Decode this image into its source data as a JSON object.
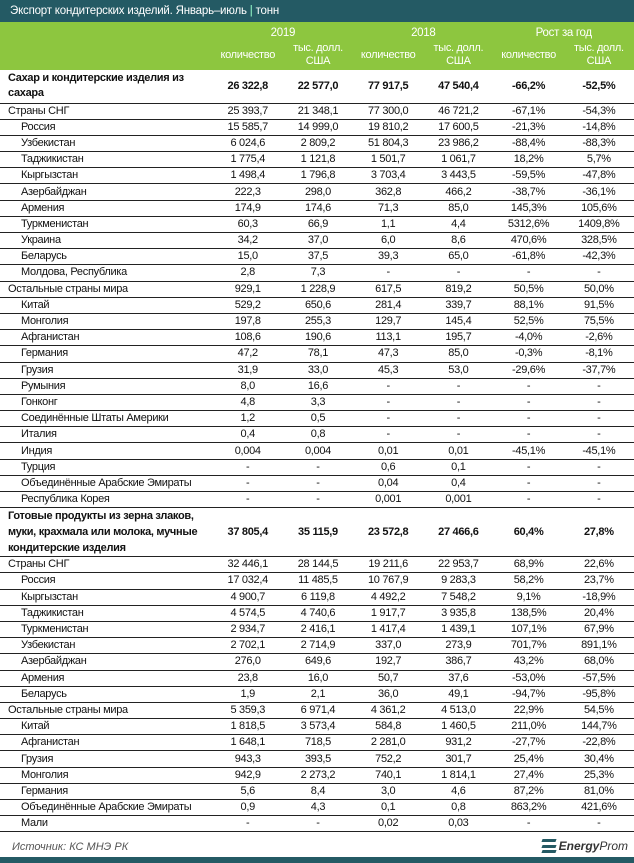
{
  "title": "Экспорт кондитерских изделий. Январь–июль",
  "title_separator": "|",
  "unit": "тонн",
  "colors": {
    "title_bar": "#245a64",
    "header": "#8dc63f"
  },
  "header": {
    "groups": [
      "2019",
      "2018",
      "Рост за год"
    ],
    "subheaders": [
      "количество",
      "тыс. долл. США",
      "количество",
      "тыс. долл. США",
      "количество",
      "тыс. долл. США"
    ]
  },
  "rows": [
    {
      "label": "Сахар и кондитерские изделия из сахара",
      "type": "bold2",
      "values": [
        "26 322,8",
        "22 577,0",
        "77 917,5",
        "47 540,4",
        "-66,2%",
        "-52,5%"
      ]
    },
    {
      "label": "Страны СНГ",
      "type": "group",
      "values": [
        "25 393,7",
        "21 348,1",
        "77 300,0",
        "46 721,2",
        "-67,1%",
        "-54,3%"
      ]
    },
    {
      "label": "Россия",
      "type": "indent",
      "values": [
        "15 585,7",
        "14 999,0",
        "19 810,2",
        "17 600,5",
        "-21,3%",
        "-14,8%"
      ]
    },
    {
      "label": "Узбекистан",
      "type": "indent",
      "values": [
        "6 024,6",
        "2 809,2",
        "51 804,3",
        "23 986,2",
        "-88,4%",
        "-88,3%"
      ]
    },
    {
      "label": "Таджикистан",
      "type": "indent",
      "values": [
        "1 775,4",
        "1 121,8",
        "1 501,7",
        "1 061,7",
        "18,2%",
        "5,7%"
      ]
    },
    {
      "label": "Кыргызстан",
      "type": "indent",
      "values": [
        "1 498,4",
        "1 796,8",
        "3 703,4",
        "3 443,5",
        "-59,5%",
        "-47,8%"
      ]
    },
    {
      "label": "Азербайджан",
      "type": "indent",
      "values": [
        "222,3",
        "298,0",
        "362,8",
        "466,2",
        "-38,7%",
        "-36,1%"
      ]
    },
    {
      "label": "Армения",
      "type": "indent",
      "values": [
        "174,9",
        "174,6",
        "71,3",
        "85,0",
        "145,3%",
        "105,6%"
      ]
    },
    {
      "label": "Туркменистан",
      "type": "indent",
      "values": [
        "60,3",
        "66,9",
        "1,1",
        "4,4",
        "5312,6%",
        "1409,8%"
      ]
    },
    {
      "label": "Украина",
      "type": "indent",
      "values": [
        "34,2",
        "37,0",
        "6,0",
        "8,6",
        "470,6%",
        "328,5%"
      ]
    },
    {
      "label": "Беларусь",
      "type": "indent",
      "values": [
        "15,0",
        "37,5",
        "39,3",
        "65,0",
        "-61,8%",
        "-42,3%"
      ]
    },
    {
      "label": "Молдова, Республика",
      "type": "indent",
      "values": [
        "2,8",
        "7,3",
        "-",
        "-",
        "-",
        "-"
      ]
    },
    {
      "label": "Остальные страны мира",
      "type": "group",
      "values": [
        "929,1",
        "1 228,9",
        "617,5",
        "819,2",
        "50,5%",
        "50,0%"
      ]
    },
    {
      "label": "Китай",
      "type": "indent",
      "values": [
        "529,2",
        "650,6",
        "281,4",
        "339,7",
        "88,1%",
        "91,5%"
      ]
    },
    {
      "label": "Монголия",
      "type": "indent",
      "values": [
        "197,8",
        "255,3",
        "129,7",
        "145,4",
        "52,5%",
        "75,5%"
      ]
    },
    {
      "label": "Афганистан",
      "type": "indent",
      "values": [
        "108,6",
        "190,6",
        "113,1",
        "195,7",
        "-4,0%",
        "-2,6%"
      ]
    },
    {
      "label": "Германия",
      "type": "indent",
      "values": [
        "47,2",
        "78,1",
        "47,3",
        "85,0",
        "-0,3%",
        "-8,1%"
      ]
    },
    {
      "label": "Грузия",
      "type": "indent",
      "values": [
        "31,9",
        "33,0",
        "45,3",
        "53,0",
        "-29,6%",
        "-37,7%"
      ]
    },
    {
      "label": "Румыния",
      "type": "indent",
      "values": [
        "8,0",
        "16,6",
        "-",
        "-",
        "-",
        "-"
      ]
    },
    {
      "label": "Гонконг",
      "type": "indent",
      "values": [
        "4,8",
        "3,3",
        "-",
        "-",
        "-",
        "-"
      ]
    },
    {
      "label": "Соединённые Штаты Америки",
      "type": "indent",
      "values": [
        "1,2",
        "0,5",
        "-",
        "-",
        "-",
        "-"
      ]
    },
    {
      "label": "Италия",
      "type": "indent",
      "values": [
        "0,4",
        "0,8",
        "-",
        "-",
        "-",
        "-"
      ]
    },
    {
      "label": "Индия",
      "type": "indent",
      "values": [
        "0,004",
        "0,004",
        "0,01",
        "0,01",
        "-45,1%",
        "-45,1%"
      ]
    },
    {
      "label": "Турция",
      "type": "indent",
      "values": [
        "-",
        "-",
        "0,6",
        "0,1",
        "-",
        "-"
      ]
    },
    {
      "label": "Объединённые Арабские Эмираты",
      "type": "indent",
      "values": [
        "-",
        "-",
        "0,04",
        "0,4",
        "-",
        "-"
      ]
    },
    {
      "label": "Республика Корея",
      "type": "indent",
      "values": [
        "-",
        "-",
        "0,001",
        "0,001",
        "-",
        "-"
      ]
    },
    {
      "label": "Готовые продукты из зерна злаков, муки, крахмала или молока, мучные кондитерские изделия",
      "type": "bold3",
      "values": [
        "37 805,4",
        "35 115,9",
        "23 572,8",
        "27 466,6",
        "60,4%",
        "27,8%"
      ]
    },
    {
      "label": "Страны СНГ",
      "type": "group",
      "values": [
        "32 446,1",
        "28 144,5",
        "19 211,6",
        "22 953,7",
        "68,9%",
        "22,6%"
      ]
    },
    {
      "label": "Россия",
      "type": "indent",
      "values": [
        "17 032,4",
        "11 485,5",
        "10 767,9",
        "9 283,3",
        "58,2%",
        "23,7%"
      ]
    },
    {
      "label": "Кыргызстан",
      "type": "indent",
      "values": [
        "4 900,7",
        "6 119,8",
        "4 492,2",
        "7 548,2",
        "9,1%",
        "-18,9%"
      ]
    },
    {
      "label": "Таджикистан",
      "type": "indent",
      "values": [
        "4 574,5",
        "4 740,6",
        "1 917,7",
        "3 935,8",
        "138,5%",
        "20,4%"
      ]
    },
    {
      "label": "Туркменистан",
      "type": "indent",
      "values": [
        "2 934,7",
        "2 416,1",
        "1 417,4",
        "1 439,1",
        "107,1%",
        "67,9%"
      ]
    },
    {
      "label": "Узбекистан",
      "type": "indent",
      "values": [
        "2 702,1",
        "2 714,9",
        "337,0",
        "273,9",
        "701,7%",
        "891,1%"
      ]
    },
    {
      "label": "Азербайджан",
      "type": "indent",
      "values": [
        "276,0",
        "649,6",
        "192,7",
        "386,7",
        "43,2%",
        "68,0%"
      ]
    },
    {
      "label": "Армения",
      "type": "indent",
      "values": [
        "23,8",
        "16,0",
        "50,7",
        "37,6",
        "-53,0%",
        "-57,5%"
      ]
    },
    {
      "label": "Беларусь",
      "type": "indent",
      "values": [
        "1,9",
        "2,1",
        "36,0",
        "49,1",
        "-94,7%",
        "-95,8%"
      ]
    },
    {
      "label": "Остальные страны мира",
      "type": "group",
      "values": [
        "5 359,3",
        "6 971,4",
        "4 361,2",
        "4 513,0",
        "22,9%",
        "54,5%"
      ]
    },
    {
      "label": "Китай",
      "type": "indent",
      "values": [
        "1 818,5",
        "3 573,4",
        "584,8",
        "1 460,5",
        "211,0%",
        "144,7%"
      ]
    },
    {
      "label": "Афганистан",
      "type": "indent",
      "values": [
        "1 648,1",
        "718,5",
        "2 281,0",
        "931,2",
        "-27,7%",
        "-22,8%"
      ]
    },
    {
      "label": "Грузия",
      "type": "indent",
      "values": [
        "943,3",
        "393,5",
        "752,2",
        "301,7",
        "25,4%",
        "30,4%"
      ]
    },
    {
      "label": "Монголия",
      "type": "indent",
      "values": [
        "942,9",
        "2 273,2",
        "740,1",
        "1 814,1",
        "27,4%",
        "25,3%"
      ]
    },
    {
      "label": "Германия",
      "type": "indent",
      "values": [
        "5,6",
        "8,4",
        "3,0",
        "4,6",
        "87,2%",
        "81,0%"
      ]
    },
    {
      "label": "Объединённые Арабские Эмираты",
      "type": "indent",
      "values": [
        "0,9",
        "4,3",
        "0,1",
        "0,8",
        "863,2%",
        "421,6%"
      ]
    },
    {
      "label": "Мали",
      "type": "indent",
      "values": [
        "-",
        "-",
        "0,02",
        "0,03",
        "-",
        "-"
      ]
    }
  ],
  "footer": {
    "source": "Источник: КС МНЭ РК",
    "logo": "EnergyProm"
  }
}
